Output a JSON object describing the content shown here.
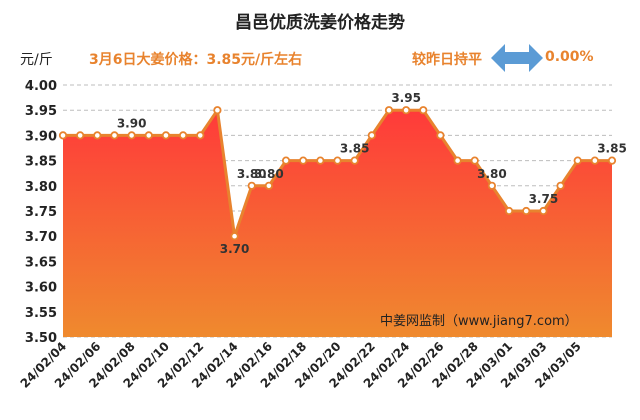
{
  "header": {
    "title": "昌邑优质洗姜价格走势",
    "unit": "元/斤",
    "headline": "3月6日大姜价格：3.85元/斤左右",
    "change_label": "较昨日持平",
    "change_value": "0.00%",
    "change_icon": "left-right-arrow-icon"
  },
  "colors": {
    "accent": "#e8832e",
    "line": "#e8832e",
    "area_top": "#ff3a3a",
    "area_bottom": "#ef8a2e",
    "arrow": "#5b9bd5",
    "grid": "#bdbdbd"
  },
  "watermark": "中姜网监制（www.jiang7.com）",
  "chart_data": {
    "type": "area",
    "title": "昌邑优质洗姜价格走势",
    "ylabel": "元/斤",
    "xlabel": "",
    "ylim": [
      3.5,
      4.0
    ],
    "y_ticks": [
      "3.50",
      "3.55",
      "3.60",
      "3.65",
      "3.70",
      "3.75",
      "3.80",
      "3.85",
      "3.90",
      "3.95",
      "4.00"
    ],
    "grid": "horizontal",
    "x_tick_labels": [
      "24/02/04",
      "24/02/06",
      "24/02/08",
      "24/02/10",
      "24/02/12",
      "24/02/14",
      "24/02/16",
      "24/02/18",
      "24/02/20",
      "24/02/22",
      "24/02/24",
      "24/02/26",
      "24/02/28",
      "24/03/01",
      "24/03/03",
      "24/03/05"
    ],
    "series": [
      {
        "values": [
          3.9,
          3.9,
          3.9,
          3.9,
          3.9,
          3.9,
          3.9,
          3.9,
          3.9,
          3.95,
          3.7,
          3.8,
          3.8,
          3.85,
          3.85,
          3.85,
          3.85,
          3.85,
          3.9,
          3.95,
          3.95,
          3.95,
          3.9,
          3.85,
          3.85,
          3.8,
          3.75,
          3.75,
          3.75,
          3.8,
          3.85,
          3.85,
          3.85
        ]
      }
    ],
    "data_labels": [
      {
        "index": 4,
        "text": "3.90"
      },
      {
        "index": 10,
        "text": "3.70"
      },
      {
        "index": 11,
        "text": "3.80"
      },
      {
        "index": 12,
        "text": "3.80"
      },
      {
        "index": 17,
        "text": "3.85"
      },
      {
        "index": 20,
        "text": "3.95"
      },
      {
        "index": 25,
        "text": "3.80"
      },
      {
        "index": 28,
        "text": "3.75"
      },
      {
        "index": 32,
        "text": "3.85"
      }
    ]
  }
}
